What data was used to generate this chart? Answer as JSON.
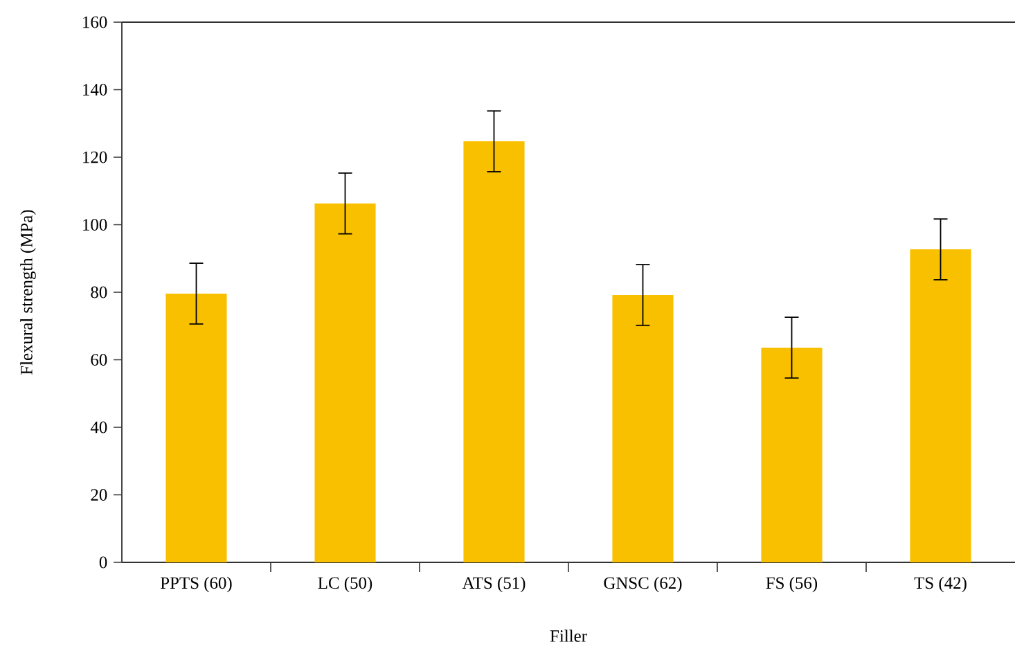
{
  "chart_data": {
    "type": "bar",
    "xlabel": "Filler",
    "ylabel": "Flexural strength (MPa)",
    "categories": [
      "PPTS (60)",
      "LC (50)",
      "ATS (51)",
      "GNSC (62)",
      "FS (56)",
      "TS (42)"
    ],
    "values": [
      79.6,
      106.3,
      124.7,
      79.2,
      63.6,
      92.7
    ],
    "errors": [
      9,
      9,
      9,
      9,
      9,
      9
    ],
    "color": "#f9c000",
    "ylim": [
      0,
      160
    ],
    "yticks": [
      0,
      20,
      40,
      60,
      80,
      100,
      120,
      140,
      160
    ],
    "grid": false
  }
}
